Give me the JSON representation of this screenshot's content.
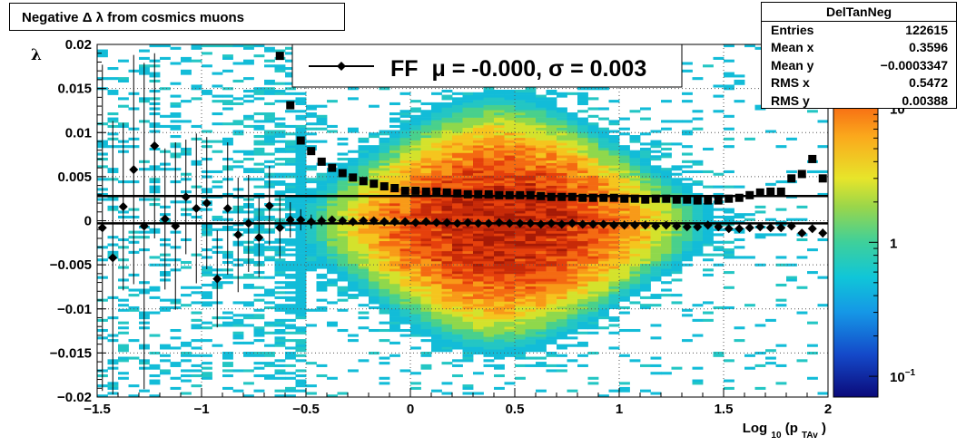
{
  "title": "Negative Δ λ from cosmics muons",
  "stats": {
    "name": "DelTanNeg",
    "rows": [
      {
        "label": "Entries",
        "value": "122615"
      },
      {
        "label": "Mean x",
        "value": "0.3596"
      },
      {
        "label": "Mean y",
        "value": "−0.0003347"
      },
      {
        "label": "RMS x",
        "value": "0.5472"
      },
      {
        "label": "RMS y",
        "value": "0.00388"
      }
    ]
  },
  "chart_data": {
    "type": "heatmap",
    "xlabel": "Log",
    "xlabel_sub": "10",
    "xlabel_arg": "(p",
    "xlabel_arg_sub": "TAv",
    "xlabel_close": ")",
    "ylabel": "λ",
    "xlim": [
      -1.5,
      2.0
    ],
    "ylim": [
      -0.02,
      0.02
    ],
    "x_ticks": [
      {
        "v": -1.5,
        "label": "−1.5"
      },
      {
        "v": -1,
        "label": "−1"
      },
      {
        "v": -0.5,
        "label": "−0.5"
      },
      {
        "v": 0,
        "label": "0"
      },
      {
        "v": 0.5,
        "label": "0.5"
      },
      {
        "v": 1,
        "label": "1"
      },
      {
        "v": 1.5,
        "label": "1.5"
      },
      {
        "v": 2,
        "label": "2"
      }
    ],
    "y_ticks": [
      {
        "v": 0.02,
        "label": "0.02"
      },
      {
        "v": 0.015,
        "label": "0.015"
      },
      {
        "v": 0.01,
        "label": "0.01"
      },
      {
        "v": 0.005,
        "label": "0.005"
      },
      {
        "v": 0,
        "label": "0"
      },
      {
        "v": -0.005,
        "label": "−0.005"
      },
      {
        "v": -0.01,
        "label": "−0.01"
      },
      {
        "v": -0.015,
        "label": "−0.015"
      },
      {
        "v": -0.02,
        "label": "−0.02"
      }
    ],
    "grid": true,
    "colorbar": {
      "scale": "log",
      "range": [
        0.07,
        30
      ],
      "ticks": [
        {
          "v": 10,
          "label": "10",
          "sup": ""
        },
        {
          "v": 1,
          "label": "1",
          "sup": ""
        },
        {
          "v": 0.1,
          "label": "10",
          "sup": "−1"
        }
      ]
    },
    "legend": {
      "label": "FF",
      "mu_label": "μ = -0.000, σ =   0.003",
      "placement": "top-center"
    },
    "fit_lines": [
      0.0028,
      -0.0003
    ],
    "series": [
      {
        "type": "mean",
        "marker": "diamond",
        "x": [
          -1.475,
          -1.425,
          -1.375,
          -1.325,
          -1.275,
          -1.225,
          -1.175,
          -1.125,
          -1.075,
          -1.025,
          -0.975,
          -0.925,
          -0.875,
          -0.825,
          -0.775,
          -0.725,
          -0.675,
          -0.625,
          -0.575,
          -0.525,
          -0.475,
          -0.425,
          -0.375,
          -0.325,
          -0.275,
          -0.225,
          -0.175,
          -0.125,
          -0.075,
          -0.025,
          0.025,
          0.075,
          0.125,
          0.175,
          0.225,
          0.275,
          0.325,
          0.375,
          0.425,
          0.475,
          0.525,
          0.575,
          0.625,
          0.675,
          0.725,
          0.775,
          0.825,
          0.875,
          0.925,
          0.975,
          1.025,
          1.075,
          1.125,
          1.175,
          1.225,
          1.275,
          1.325,
          1.375,
          1.425,
          1.475,
          1.525,
          1.575,
          1.625,
          1.675,
          1.725,
          1.775,
          1.825,
          1.875,
          1.925,
          1.975
        ],
        "y": [
          -0.0008,
          -0.0042,
          0.0016,
          0.0058,
          -0.0006,
          0.0085,
          0.0002,
          -0.0006,
          0.0027,
          0.0014,
          0.002,
          -0.0066,
          0.0014,
          -0.0016,
          -0.0003,
          -0.0019,
          0.0017,
          -0.0008,
          0.0001,
          0.0001,
          -0.0001,
          0.0,
          0.0001,
          0.0,
          -0.0001,
          0.0,
          0.0,
          -0.0001,
          -0.0001,
          -0.0001,
          -0.0002,
          -0.0001,
          -0.0002,
          -0.0002,
          -0.0003,
          -0.0002,
          -0.0003,
          -0.0003,
          -0.0002,
          -0.0003,
          -0.0003,
          -0.0003,
          -0.0004,
          -0.0003,
          -0.0004,
          -0.0003,
          -0.0004,
          -0.0004,
          -0.0004,
          -0.0005,
          -0.0005,
          -0.0005,
          -0.0005,
          -0.0006,
          -0.0005,
          -0.0006,
          -0.0007,
          -0.0007,
          -0.0005,
          -0.0007,
          -0.0009,
          -0.0009,
          -0.0008,
          -0.0007,
          -0.0008,
          -0.0008,
          -0.0006,
          -0.0014,
          -0.0009,
          -0.0014
        ],
        "err": [
          0.0185,
          0.0155,
          0.0095,
          0.013,
          0.0185,
          0.0105,
          0.008,
          0.0095,
          0.0065,
          0.0085,
          0.0075,
          0.0055,
          0.0075,
          0.0065,
          0.0055,
          0.0045,
          0.0045,
          0.0035,
          0.002,
          0.0012,
          0.0008,
          0.0006,
          0.0004,
          0.0004,
          0.0003,
          0.0003,
          0.0003,
          0.0003,
          0.0003,
          0.0003,
          0.0003,
          0.0003,
          0.0003,
          0.0003,
          0.0003,
          0.0003,
          0.0003,
          0.0003,
          0.0003,
          0.0003,
          0.0003,
          0.0003,
          0.0003,
          0.0003,
          0.0003,
          0.0003,
          0.0003,
          0.0003,
          0.0003,
          0.0003,
          0.0003,
          0.0003,
          0.0003,
          0.0003,
          0.0003,
          0.0003,
          0.0003,
          0.0003,
          0.0003,
          0.0003,
          0.0003,
          0.0003,
          0.0003,
          0.0003,
          0.0003,
          0.0003,
          0.0003,
          0.0004,
          0.0004,
          0.0005
        ]
      },
      {
        "type": "rms",
        "marker": "square",
        "x": [
          -0.625,
          -0.575,
          -0.525,
          -0.475,
          -0.425,
          -0.375,
          -0.325,
          -0.275,
          -0.225,
          -0.175,
          -0.125,
          -0.075,
          -0.025,
          0.025,
          0.075,
          0.125,
          0.175,
          0.225,
          0.275,
          0.325,
          0.375,
          0.425,
          0.475,
          0.525,
          0.575,
          0.625,
          0.675,
          0.725,
          0.775,
          0.825,
          0.875,
          0.925,
          0.975,
          1.025,
          1.075,
          1.125,
          1.175,
          1.225,
          1.275,
          1.325,
          1.375,
          1.425,
          1.475,
          1.525,
          1.575,
          1.625,
          1.675,
          1.725,
          1.775,
          1.825,
          1.875,
          1.925,
          1.975
        ],
        "y": [
          0.0187,
          0.0131,
          0.0091,
          0.0079,
          0.0067,
          0.006,
          0.0054,
          0.0049,
          0.0045,
          0.0042,
          0.0039,
          0.0037,
          0.0034,
          0.0034,
          0.0033,
          0.0033,
          0.0032,
          0.0031,
          0.003,
          0.003,
          0.003,
          0.0029,
          0.0029,
          0.0029,
          0.0029,
          0.0028,
          0.0027,
          0.0027,
          0.0027,
          0.0026,
          0.0026,
          0.0026,
          0.0026,
          0.0025,
          0.0025,
          0.0024,
          0.0025,
          0.0025,
          0.0024,
          0.0024,
          0.0023,
          0.0023,
          0.0023,
          0.0025,
          0.0026,
          0.0029,
          0.0032,
          0.0033,
          0.0033,
          0.0048,
          0.0053,
          0.007,
          0.0048
        ]
      }
    ]
  }
}
